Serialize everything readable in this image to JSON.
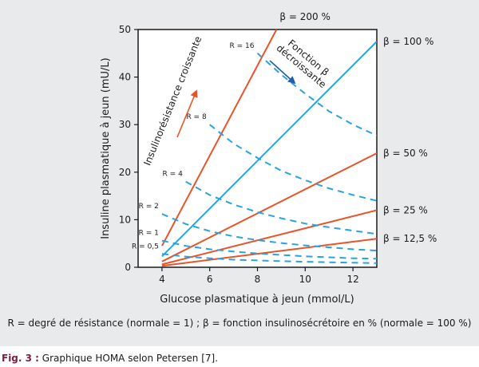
{
  "chart_data": {
    "type": "line",
    "xlabel": "Glucose plasmatique à jeun (mmol/L)",
    "ylabel": "Insuline plasmatique à jeun (mU/L)",
    "xlim": [
      3,
      13
    ],
    "ylim": [
      0,
      50
    ],
    "x_ticks": [
      4,
      6,
      8,
      10,
      12
    ],
    "y_ticks": [
      0,
      10,
      20,
      30,
      40,
      50
    ],
    "grid": false,
    "series": [
      {
        "name": "β = 200 %",
        "style": "solid",
        "color": "#e8542a",
        "points": [
          [
            4,
            4.5
          ],
          [
            8.8,
            50
          ]
        ]
      },
      {
        "name": "β = 100 %",
        "style": "solid",
        "color": "#29a3dd",
        "points": [
          [
            4,
            2.3
          ],
          [
            13,
            47.5
          ]
        ]
      },
      {
        "name": "β = 50 %",
        "style": "solid",
        "color": "#e8542a",
        "points": [
          [
            4,
            1.2
          ],
          [
            13,
            24
          ]
        ]
      },
      {
        "name": "β = 25 %",
        "style": "solid",
        "color": "#e8542a",
        "points": [
          [
            4,
            0.6
          ],
          [
            13,
            12
          ]
        ]
      },
      {
        "name": "β = 12,5 %",
        "style": "solid",
        "color": "#e8542a",
        "points": [
          [
            4,
            0.3
          ],
          [
            13,
            6
          ]
        ]
      },
      {
        "name": "R = 16",
        "style": "dashed",
        "color": "#29a3dd",
        "points": [
          [
            8,
            45
          ],
          [
            9,
            40.5
          ],
          [
            10,
            36.5
          ],
          [
            11,
            32.8
          ],
          [
            12,
            30
          ],
          [
            13,
            27.7
          ]
        ]
      },
      {
        "name": "R = 8",
        "style": "dashed",
        "color": "#29a3dd",
        "points": [
          [
            6,
            30
          ],
          [
            7,
            26
          ],
          [
            8,
            23
          ],
          [
            9,
            20.3
          ],
          [
            10,
            18.3
          ],
          [
            11,
            16.6
          ],
          [
            12,
            15.2
          ],
          [
            13,
            14
          ]
        ]
      },
      {
        "name": "R = 4",
        "style": "dashed",
        "color": "#29a3dd",
        "points": [
          [
            5,
            18
          ],
          [
            6,
            15.2
          ],
          [
            7,
            13.2
          ],
          [
            8,
            11.6
          ],
          [
            9,
            10.3
          ],
          [
            10,
            9.2
          ],
          [
            11,
            8.4
          ],
          [
            12,
            7.7
          ],
          [
            13,
            7
          ]
        ]
      },
      {
        "name": "R = 2",
        "style": "dashed",
        "color": "#29a3dd",
        "points": [
          [
            4,
            11.2
          ],
          [
            5,
            9.1
          ],
          [
            6,
            7.6
          ],
          [
            7,
            6.5
          ],
          [
            8,
            5.7
          ],
          [
            9,
            5.1
          ],
          [
            10,
            4.6
          ],
          [
            11,
            4.2
          ],
          [
            12,
            3.8
          ],
          [
            13,
            3.5
          ]
        ]
      },
      {
        "name": "R = 1",
        "style": "dashed",
        "color": "#29a3dd",
        "points": [
          [
            4,
            5.6
          ],
          [
            5,
            4.5
          ],
          [
            6,
            3.8
          ],
          [
            7,
            3.3
          ],
          [
            8,
            2.9
          ],
          [
            9,
            2.6
          ],
          [
            10,
            2.3
          ],
          [
            11,
            2.1
          ],
          [
            12,
            1.9
          ],
          [
            13,
            1.8
          ]
        ]
      },
      {
        "name": "R = 0,5",
        "style": "dashed",
        "color": "#29a3dd",
        "points": [
          [
            4,
            2.8
          ],
          [
            5,
            2.25
          ],
          [
            6,
            1.9
          ],
          [
            7,
            1.6
          ],
          [
            8,
            1.45
          ],
          [
            9,
            1.3
          ],
          [
            10,
            1.15
          ],
          [
            11,
            1.05
          ],
          [
            12,
            0.95
          ],
          [
            13,
            0.88
          ]
        ]
      }
    ],
    "annotations": [
      {
        "text": "Insulinorésistance croissante",
        "color": "#e8542a"
      },
      {
        "text_line1": "Fonction β",
        "text_line2": "décroissante",
        "color": "#1f5fa8"
      }
    ]
  },
  "footnote": "R = degré de résistance (normale = 1) ; β = fonction insulinosécrétoire en % (normale = 100 %)",
  "caption": {
    "label": "Fig. 3 :",
    "text": " Graphique HOMA selon Petersen [7]."
  }
}
